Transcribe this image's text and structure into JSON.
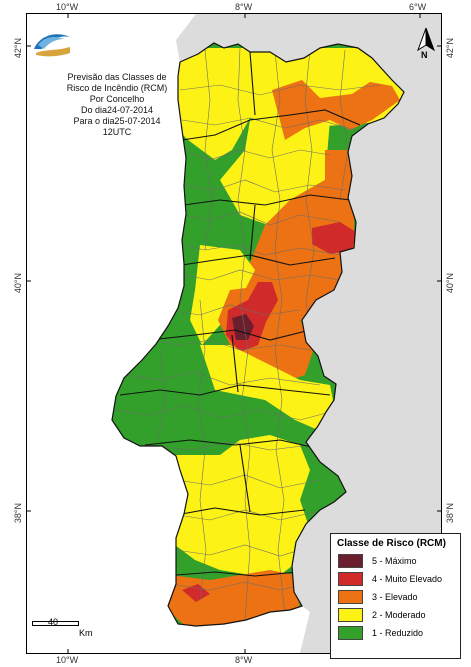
{
  "grid": {
    "top_labels": [
      "10°W",
      "8°W",
      "6°W"
    ],
    "bottom_labels": [
      "10°W",
      "8°W"
    ],
    "left_labels": [
      "42°N",
      "40°N",
      "38°N"
    ],
    "right_labels": [
      "42°N",
      "40°N",
      "38°N"
    ]
  },
  "title_lines": [
    "Previsão das Classes de",
    "Risco de Incêndio (RCM)",
    "Por Concelho",
    "Do dia24-07-2014",
    "Para o dia25-07-2014",
    "12UTC"
  ],
  "north_label": "N",
  "scale": {
    "value": "40",
    "unit": "Km"
  },
  "legend": {
    "title": "Classe de Risco (RCM)",
    "items": [
      {
        "label": "5 - Máximo",
        "color": "#6b1f2e"
      },
      {
        "label": "4 - Muito Elevado",
        "color": "#d02a2a"
      },
      {
        "label": "3 - Elevado",
        "color": "#ec7213"
      },
      {
        "label": "2 - Moderado",
        "color": "#fcf215"
      },
      {
        "label": "1 - Reduzido",
        "color": "#32a02a"
      }
    ]
  },
  "colors": {
    "maximo": "#6b1f2e",
    "muito_elevado": "#d02a2a",
    "elevado": "#ec7213",
    "moderado": "#fcf215",
    "reduzido": "#32a02a",
    "spain": "#dcdcdc",
    "district_border": "#111111",
    "municipality_border": "#6d6d6d"
  }
}
